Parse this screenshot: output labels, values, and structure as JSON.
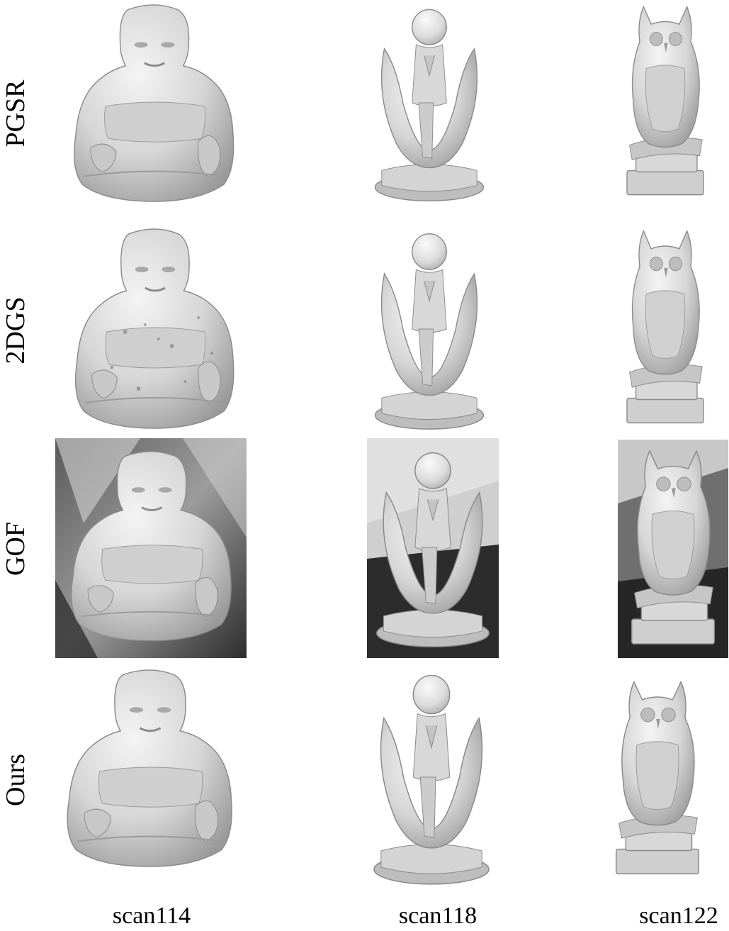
{
  "rows": [
    {
      "label": "PGSR"
    },
    {
      "label": "2DGS"
    },
    {
      "label": "GOF"
    },
    {
      "label": "Ours"
    }
  ],
  "columns": [
    {
      "label": "scan114",
      "subject": "buddha-statue"
    },
    {
      "label": "scan118",
      "subject": "angel-in-hands-statue"
    },
    {
      "label": "scan122",
      "subject": "owl-statue"
    }
  ],
  "colors": {
    "background": "#ffffff",
    "mesh_light": "#e6e6e6",
    "mesh_mid": "#bdbdbd",
    "mesh_dark": "#7a7a7a",
    "gof_background_dark": "#3a3a3a",
    "gof_background_light": "#b8b8b8"
  }
}
